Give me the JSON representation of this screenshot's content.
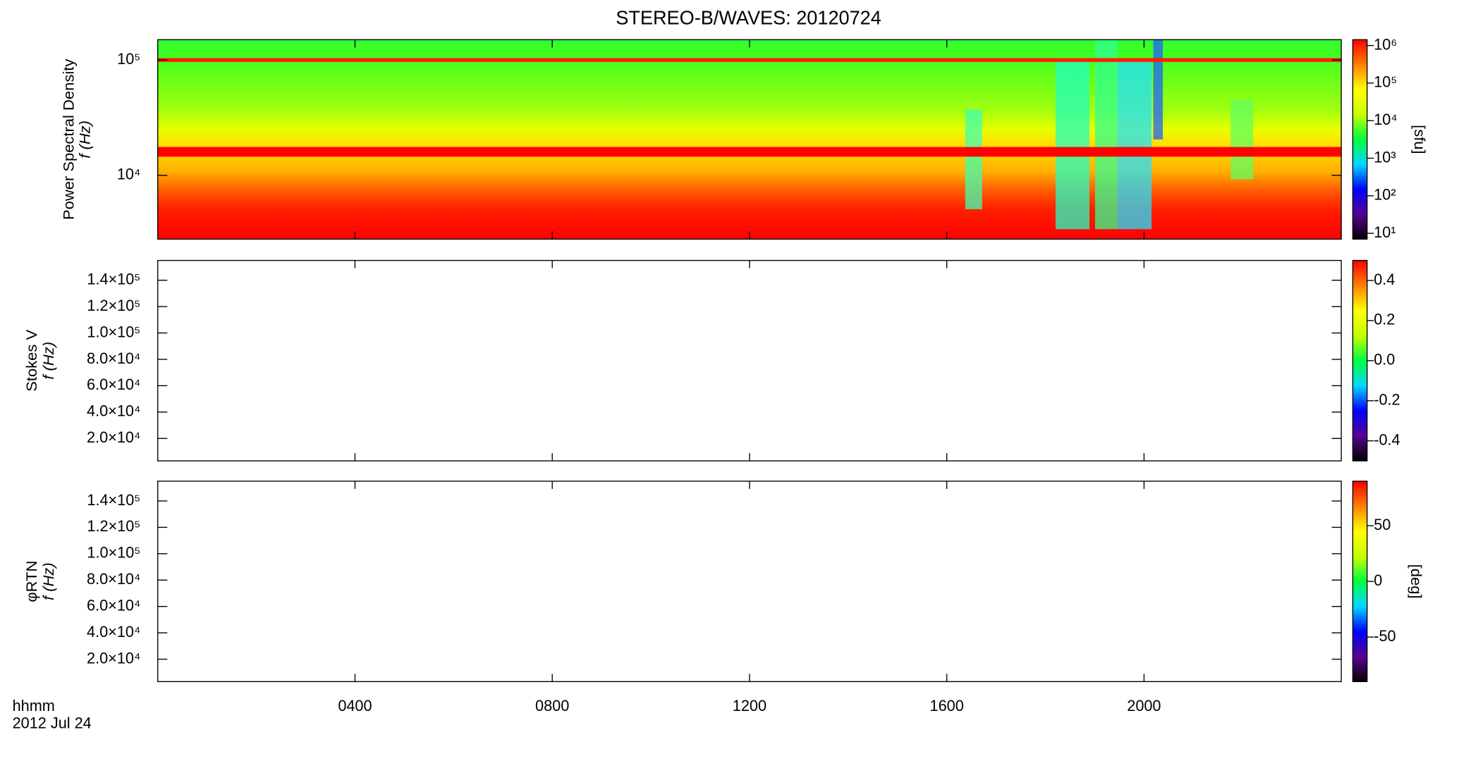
{
  "chart_data": [
    {
      "type": "spectrogram",
      "title": "STEREO-B/WAVES: 20120724",
      "ylabel": "Power Spectral Density",
      "ylabel2": "f (Hz)",
      "ylog": true,
      "ylim": [
        2800,
        150000
      ],
      "yticks": [
        {
          "value": 10000,
          "label": "10⁴"
        },
        {
          "value": 100000,
          "label": "10⁵"
        }
      ],
      "clog": true,
      "clim": [
        7,
        1430000
      ],
      "clabel": "[sfu]",
      "cticks": [
        {
          "value": 10,
          "label": "10¹"
        },
        {
          "value": 100,
          "label": "10²"
        },
        {
          "value": 1000,
          "label": "10³"
        },
        {
          "value": 10000,
          "label": "10⁴"
        },
        {
          "value": 100000,
          "label": "10⁵"
        },
        {
          "value": 1000000,
          "label": "10⁶"
        }
      ],
      "colormap": [
        "#000000",
        "#5a0090",
        "#0000ff",
        "#00d8ff",
        "#00ff40",
        "#c8ff00",
        "#ffff00",
        "#ff8000",
        "#ff0000"
      ]
    },
    {
      "type": "spectrogram",
      "ylabel": "Stokes V",
      "ylabel2": "f (Hz)",
      "ylog": false,
      "ylim": [
        3000,
        155000
      ],
      "yticks": [
        {
          "value": 20000,
          "label": "2.0×10⁴"
        },
        {
          "value": 40000,
          "label": "4.0×10⁴"
        },
        {
          "value": 60000,
          "label": "6.0×10⁴"
        },
        {
          "value": 80000,
          "label": "8.0×10⁴"
        },
        {
          "value": 100000,
          "label": "1.0×10⁵"
        },
        {
          "value": 120000,
          "label": "1.2×10⁵"
        },
        {
          "value": 140000,
          "label": "1.4×10⁵"
        }
      ],
      "clog": false,
      "clim": [
        -0.5,
        0.5
      ],
      "cticks": [
        -0.4,
        -0.2,
        {
          "value": 0,
          "label": "0.0"
        },
        0.2,
        0.4
      ],
      "colormap": [
        "#000000",
        "#5a0090",
        "#0000ff",
        "#00d8ff",
        "#00ff40",
        "#c8ff00",
        "#ffff00",
        "#ff8000",
        "#ff0000"
      ]
    },
    {
      "type": "spectrogram",
      "ylabel": "φRTN",
      "ylabel2": "f (Hz)",
      "ylog": false,
      "ylim": [
        3000,
        155000
      ],
      "yticks": [
        {
          "value": 20000,
          "label": "2.0×10⁴"
        },
        {
          "value": 40000,
          "label": "4.0×10⁴"
        },
        {
          "value": 60000,
          "label": "6.0×10⁴"
        },
        {
          "value": 80000,
          "label": "8.0×10⁴"
        },
        {
          "value": 100000,
          "label": "1.0×10⁵"
        },
        {
          "value": 120000,
          "label": "1.2×10⁵"
        },
        {
          "value": 140000,
          "label": "1.4×10⁵"
        }
      ],
      "clog": false,
      "clim": [
        -90,
        90
      ],
      "clabel": "[deg]",
      "cticks": [
        -50,
        0,
        50
      ],
      "colormap": [
        "#000000",
        "#5a0090",
        "#0000ff",
        "#00d8ff",
        "#00ff40",
        "#c8ff00",
        "#ffff00",
        "#ff8000",
        "#ff0000"
      ],
      "xlabel": "hhmm",
      "xlabel2": "2012 Jul 24",
      "xlim": [
        0,
        24
      ],
      "xticks": [
        {
          "value": 4,
          "label": "0400"
        },
        {
          "value": 8,
          "label": "0800"
        },
        {
          "value": 12,
          "label": "1200"
        },
        {
          "value": 16,
          "label": "1600"
        },
        {
          "value": 20,
          "label": "2000"
        }
      ]
    }
  ]
}
